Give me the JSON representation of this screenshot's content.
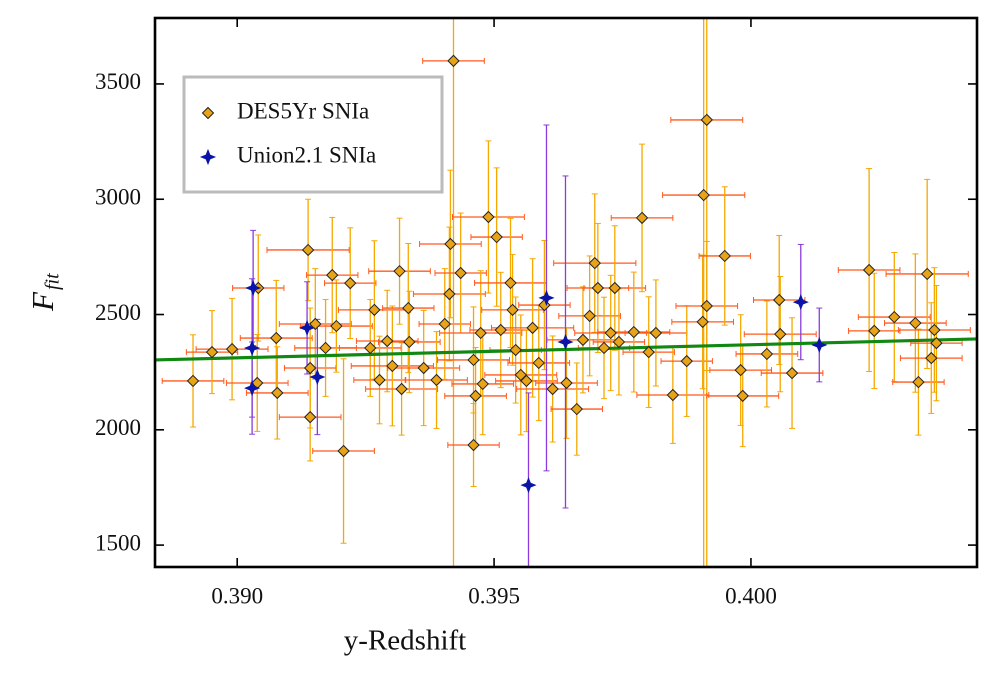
{
  "chart_data": {
    "type": "scatter",
    "xlabel": "y-Redshift",
    "ylabel": "F",
    "ylabel_sub": "fit",
    "xlim": [
      0.3884,
      0.4044
    ],
    "ylim": [
      1405,
      3786
    ],
    "xticks": [
      {
        "value": 0.39,
        "label": "0.390"
      },
      {
        "value": 0.395,
        "label": "0.395"
      },
      {
        "value": 0.4,
        "label": "0.400"
      }
    ],
    "yticks": [
      1500,
      2000,
      2500,
      3000,
      3500
    ],
    "legend": "upper left",
    "series": [
      {
        "name": "DES5Yr SNIa",
        "marker": "diamond",
        "color": "#e8a317",
        "error_color": "#f5a800",
        "xerror_color": "#ff5a1f",
        "x": [
          0.38914,
          0.38951,
          0.3899,
          0.39039,
          0.39041,
          0.39076,
          0.39078,
          0.39138,
          0.39142,
          0.39142,
          0.39152,
          0.39172,
          0.39185,
          0.39193,
          0.39207,
          0.3922,
          0.39259,
          0.39267,
          0.39277,
          0.39292,
          0.39302,
          0.39316,
          0.3932,
          0.39333,
          0.39335,
          0.39363,
          0.39388,
          0.39404,
          0.39413,
          0.39415,
          0.39421,
          0.39435,
          0.3946,
          0.39464,
          0.3946,
          0.39474,
          0.39478,
          0.39489,
          0.39505,
          0.39513,
          0.39532,
          0.39536,
          0.39542,
          0.39552,
          0.39563,
          0.39575,
          0.39587,
          0.39598,
          0.39614,
          0.39641,
          0.39661,
          0.39673,
          0.39686,
          0.39696,
          0.39702,
          0.39714,
          0.39727,
          0.39735,
          0.39743,
          0.39772,
          0.39788,
          0.39801,
          0.39815,
          0.39848,
          0.39875,
          0.39906,
          0.39908,
          0.39914,
          0.39914,
          0.39949,
          0.3998,
          0.39984,
          0.40031,
          0.40055,
          0.40057,
          0.4008,
          0.4023,
          0.4024,
          0.40279,
          0.4032,
          0.40326,
          0.40343,
          0.40351,
          0.40357,
          0.40361
        ],
        "values": [
          2212,
          2337,
          2350,
          2203,
          2615,
          2398,
          2160,
          2780,
          2055,
          2268,
          2459,
          2355,
          2671,
          2450,
          1908,
          2636,
          2355,
          2520,
          2216,
          2385,
          2277,
          2688,
          2177,
          2528,
          2381,
          2268,
          2216,
          2459,
          2589,
          2806,
          3600,
          2680,
          2303,
          2147,
          1934,
          2420,
          2199,
          2923,
          2836,
          2433,
          2637,
          2520,
          2346,
          2238,
          2212,
          2442,
          2290,
          2541,
          2177,
          2203,
          2090,
          2390,
          2494,
          2723,
          2615,
          2355,
          2420,
          2615,
          2381,
          2424,
          2919,
          2337,
          2420,
          2151,
          2298,
          2468,
          3018,
          2537,
          3344,
          2754,
          2259,
          2147,
          2329,
          2563,
          2415,
          2246,
          2693,
          2429,
          2489,
          2463,
          2207,
          2676,
          2311,
          2433,
          2376
        ],
        "xerr": [
          0.0006,
          0.0005,
          0.0007,
          0.0006,
          0.0005,
          0.0007,
          0.0006,
          0.0008,
          0.0006,
          0.0005,
          0.0007,
          0.0006,
          0.0005,
          0.0007,
          0.0006,
          0.0005,
          0.0006,
          0.0007,
          0.0005,
          0.0006,
          0.0008,
          0.0006,
          0.0007,
          0.0005,
          0.0006,
          0.0007,
          0.0006,
          0.0005,
          0.0007,
          0.0006,
          0.0006,
          0.0005,
          0.0007,
          0.0006,
          0.0005,
          0.0008,
          0.0006,
          0.0007,
          0.0005,
          0.0006,
          0.0007,
          0.0006,
          0.0005,
          0.0007,
          0.0006,
          0.0008,
          0.0006,
          0.0005,
          0.0007,
          0.0006,
          0.0005,
          0.0007,
          0.0006,
          0.0008,
          0.0006,
          0.0005,
          0.0007,
          0.0006,
          0.0005,
          0.0007,
          0.0006,
          0.0005,
          0.0006,
          0.0007,
          0.0005,
          0.0006,
          0.0008,
          0.0006,
          0.0007,
          0.0005,
          0.0006,
          0.0007,
          0.0006,
          0.0005,
          0.0007,
          0.0006,
          0.0006,
          0.0005,
          0.0007,
          0.0006,
          0.0005,
          0.0008,
          0.0006,
          0.0007,
          0.0005
        ],
        "yerr": [
          200,
          180,
          220,
          210,
          230,
          250,
          200,
          220,
          190,
          260,
          240,
          210,
          250,
          200,
          400,
          240,
          210,
          300,
          190,
          220,
          260,
          230,
          200,
          280,
          220,
          250,
          210,
          240,
          290,
          320,
          2300,
          260,
          230,
          210,
          180,
          270,
          220,
          330,
          300,
          250,
          280,
          240,
          230,
          260,
          220,
          300,
          250,
          280,
          230,
          240,
          200,
          230,
          260,
          300,
          280,
          220,
          250,
          270,
          230,
          260,
          320,
          240,
          230,
          210,
          240,
          290,
          1800,
          280,
          2000,
          300,
          240,
          220,
          230,
          280,
          250,
          240,
          440,
          250,
          280,
          300,
          230,
          410,
          240,
          270,
          250
        ]
      },
      {
        "name": "Union2.1 SNIa",
        "marker": "star",
        "color": "#0a14a8",
        "error_color": "#8a3cdc",
        "x": [
          0.39031,
          0.39029,
          0.39029,
          0.39136,
          0.39156,
          0.39602,
          0.39567,
          0.39639,
          0.40097,
          0.40133
        ],
        "values": [
          2615,
          2355,
          2181,
          2442,
          2229,
          2572,
          1760,
          2381,
          2554,
          2368
        ],
        "yerr": [
          250,
          300,
          200,
          200,
          250,
          750,
          400,
          720,
          250,
          160
        ]
      }
    ],
    "fit": {
      "color": "#118811",
      "x": [
        0.3884,
        0.4044
      ],
      "values": [
        2303,
        2394
      ]
    }
  }
}
